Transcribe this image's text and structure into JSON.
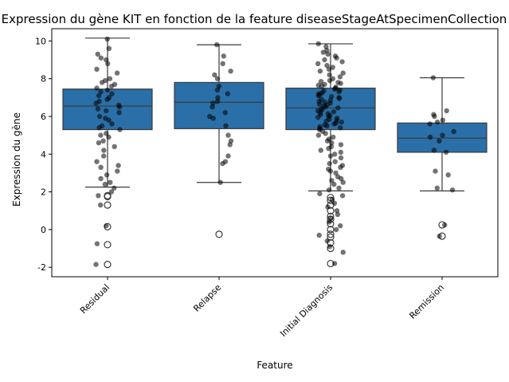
{
  "chart_data": {
    "type": "box",
    "title": "Expression du gène KIT en fonction de la feature diseaseStageAtSpecimenCollection",
    "xlabel": "Feature",
    "ylabel": "Expression du gène",
    "ylim": [
      -2.5,
      10.65
    ],
    "yticks": [
      -2,
      0,
      2,
      4,
      6,
      8,
      10
    ],
    "categories": [
      "Residual",
      "Relapse",
      "Initial Diagnosis",
      "Remission"
    ],
    "box_color": "#2a6fa8",
    "grid": false,
    "boxes": [
      {
        "category": "Residual",
        "q1": 5.3,
        "median": 6.55,
        "q3": 7.45,
        "whisker_low": 2.25,
        "whisker_high": 10.15,
        "outliers": [
          1.8,
          1.75,
          1.3,
          0.15,
          -0.8,
          -1.85
        ]
      },
      {
        "category": "Relapse",
        "q1": 5.35,
        "median": 6.75,
        "q3": 7.8,
        "whisker_low": 2.5,
        "whisker_high": 9.8,
        "outliers": [
          -0.25
        ]
      },
      {
        "category": "Initial Diagnosis",
        "q1": 5.3,
        "median": 6.45,
        "q3": 7.5,
        "whisker_low": 2.05,
        "whisker_high": 9.85,
        "outliers": [
          1.7,
          1.55,
          1.3,
          1.0,
          0.7,
          0.55,
          0.3,
          0.0,
          -0.25,
          -0.4,
          -0.7,
          -1.0,
          -1.8
        ]
      },
      {
        "category": "Remission",
        "q1": 4.1,
        "median": 4.85,
        "q3": 5.65,
        "whisker_low": 2.05,
        "whisker_high": 8.05,
        "outliers": [
          0.25,
          -0.35
        ]
      }
    ],
    "strip_points": [
      {
        "category": "Residual",
        "values": [
          10.1,
          9.6,
          9.3,
          9.1,
          9.0,
          8.8,
          8.5,
          8.3,
          8.0,
          7.9,
          7.8,
          7.7,
          7.6,
          7.5,
          7.4,
          7.3,
          7.2,
          7.1,
          7.0,
          6.9,
          6.8,
          6.7,
          6.6,
          6.5,
          6.4,
          6.3,
          6.2,
          6.0,
          5.9,
          5.8,
          5.6,
          5.5,
          5.4,
          5.3,
          5.1,
          5.0,
          4.9,
          4.7,
          4.6,
          4.4,
          4.2,
          3.9,
          3.6,
          3.4,
          3.3,
          3.1,
          2.9,
          2.7,
          2.5,
          2.4,
          2.2,
          2.0,
          1.8,
          1.3,
          0.2,
          -0.75,
          -1.85
        ]
      },
      {
        "category": "Relapse",
        "values": [
          9.8,
          9.2,
          8.8,
          8.4,
          8.2,
          8.0,
          7.6,
          7.4,
          7.2,
          7.0,
          6.8,
          6.7,
          6.5,
          6.2,
          6.0,
          5.9,
          5.5,
          5.0,
          4.7,
          4.5,
          3.9,
          3.6,
          3.5,
          2.5
        ]
      },
      {
        "category": "Initial Diagnosis",
        "values": [
          9.85,
          9.7,
          9.5,
          9.4,
          9.3,
          9.2,
          9.1,
          9.0,
          8.9,
          8.8,
          8.7,
          8.6,
          8.5,
          8.4,
          8.3,
          8.2,
          8.1,
          8.0,
          7.9,
          7.85,
          7.8,
          7.75,
          7.7,
          7.65,
          7.6,
          7.55,
          7.5,
          7.45,
          7.4,
          7.35,
          7.3,
          7.25,
          7.2,
          7.15,
          7.1,
          7.05,
          7.0,
          6.95,
          6.9,
          6.85,
          6.8,
          6.75,
          6.7,
          6.65,
          6.6,
          6.55,
          6.5,
          6.45,
          6.4,
          6.35,
          6.3,
          6.25,
          6.2,
          6.15,
          6.1,
          6.05,
          6.0,
          5.95,
          5.9,
          5.85,
          5.8,
          5.75,
          5.7,
          5.65,
          5.6,
          5.55,
          5.5,
          5.45,
          5.4,
          5.35,
          5.3,
          5.2,
          5.1,
          5.0,
          4.9,
          4.8,
          4.7,
          4.6,
          4.5,
          4.4,
          4.3,
          4.2,
          4.1,
          4.0,
          3.9,
          3.8,
          3.6,
          3.5,
          3.4,
          3.3,
          3.2,
          3.1,
          3.0,
          2.8,
          2.7,
          2.6,
          2.5,
          2.4,
          2.2,
          2.1,
          1.9,
          1.8,
          1.6,
          1.4,
          1.2,
          1.0,
          0.8,
          0.6,
          0.4,
          0.2,
          0.0,
          -0.3,
          -0.6,
          -0.9,
          -1.2,
          -1.8
        ]
      },
      {
        "category": "Remission",
        "values": [
          8.05,
          6.3,
          6.1,
          6.0,
          5.8,
          5.7,
          5.6,
          5.2,
          5.0,
          4.9,
          4.7,
          4.2,
          4.1,
          3.1,
          2.9,
          2.2,
          2.1,
          0.25,
          -0.35
        ]
      }
    ]
  }
}
